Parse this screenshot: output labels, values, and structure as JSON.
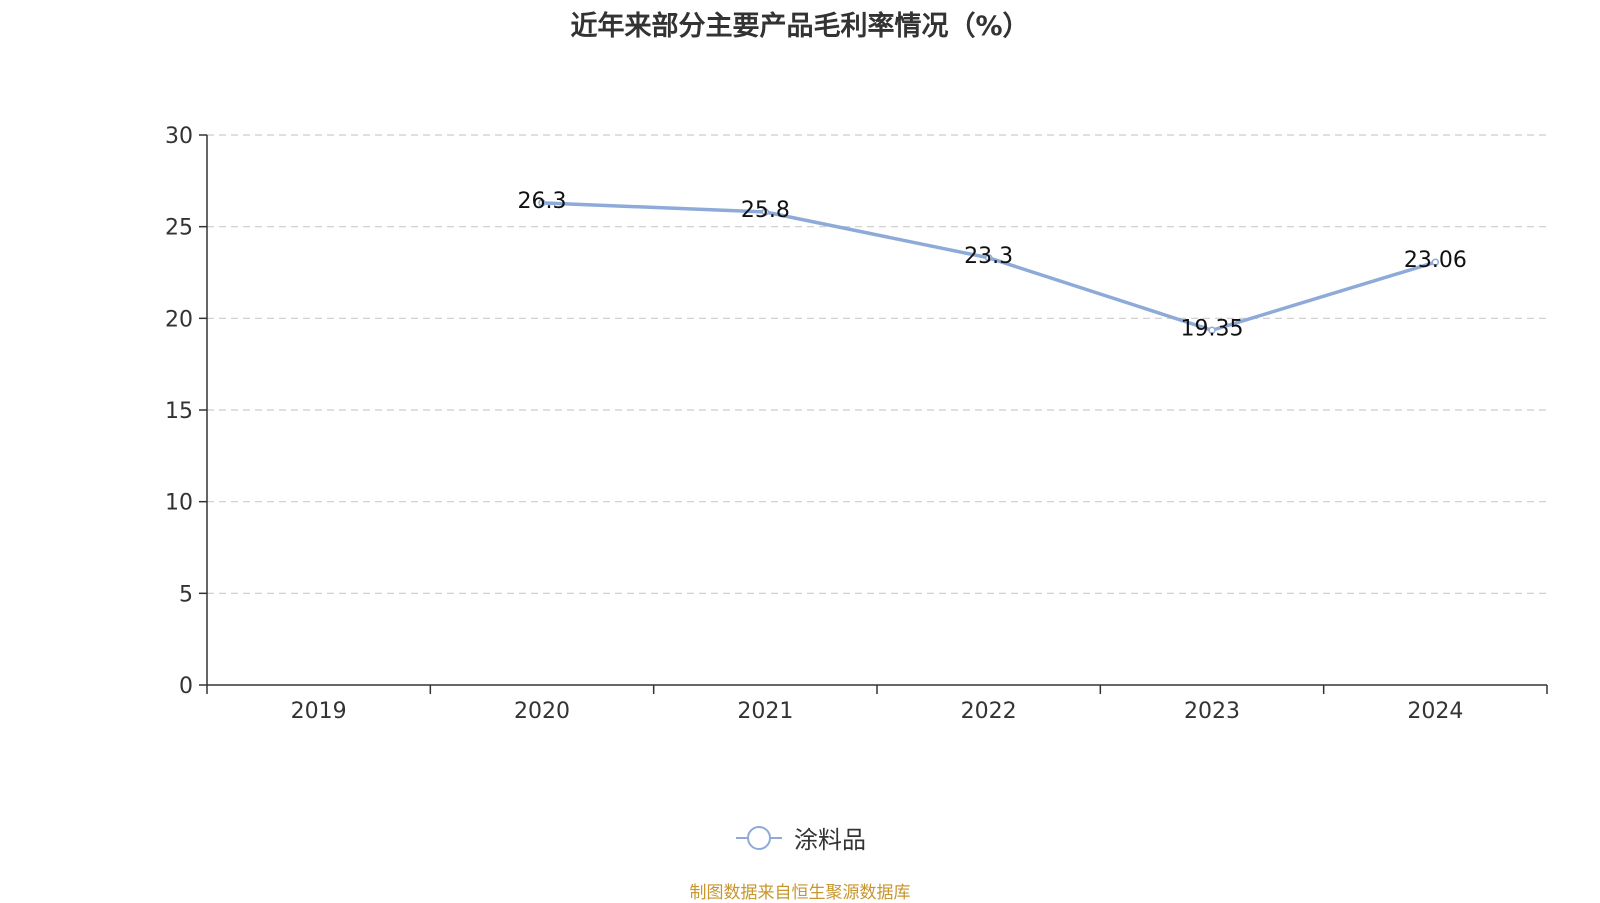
{
  "title": "近年来部分主要产品毛利率情况（%）",
  "chart_data": {
    "type": "line",
    "title": "近年来部分主要产品毛利率情况（%）",
    "categories": [
      "2019",
      "2020",
      "2021",
      "2022",
      "2023",
      "2024"
    ],
    "series": [
      {
        "name": "涂料品",
        "values": [
          null,
          26.3,
          25.8,
          23.3,
          19.35,
          23.06
        ],
        "labels": [
          "",
          "26.3",
          "25.8",
          "23.3",
          "19.35",
          "23.06"
        ]
      }
    ],
    "y_ticks": [
      "0",
      "5",
      "10",
      "15",
      "20",
      "25",
      "30"
    ],
    "ylim": [
      0,
      30
    ],
    "grid": true,
    "legend_position": "bottom-center",
    "colors": {
      "series": "#8eaad8",
      "axis": "#333333",
      "grid": "#cccccc",
      "text": "#333333"
    }
  },
  "legend": {
    "label": "涂料品"
  },
  "source": "制图数据来自恒生聚源数据库"
}
